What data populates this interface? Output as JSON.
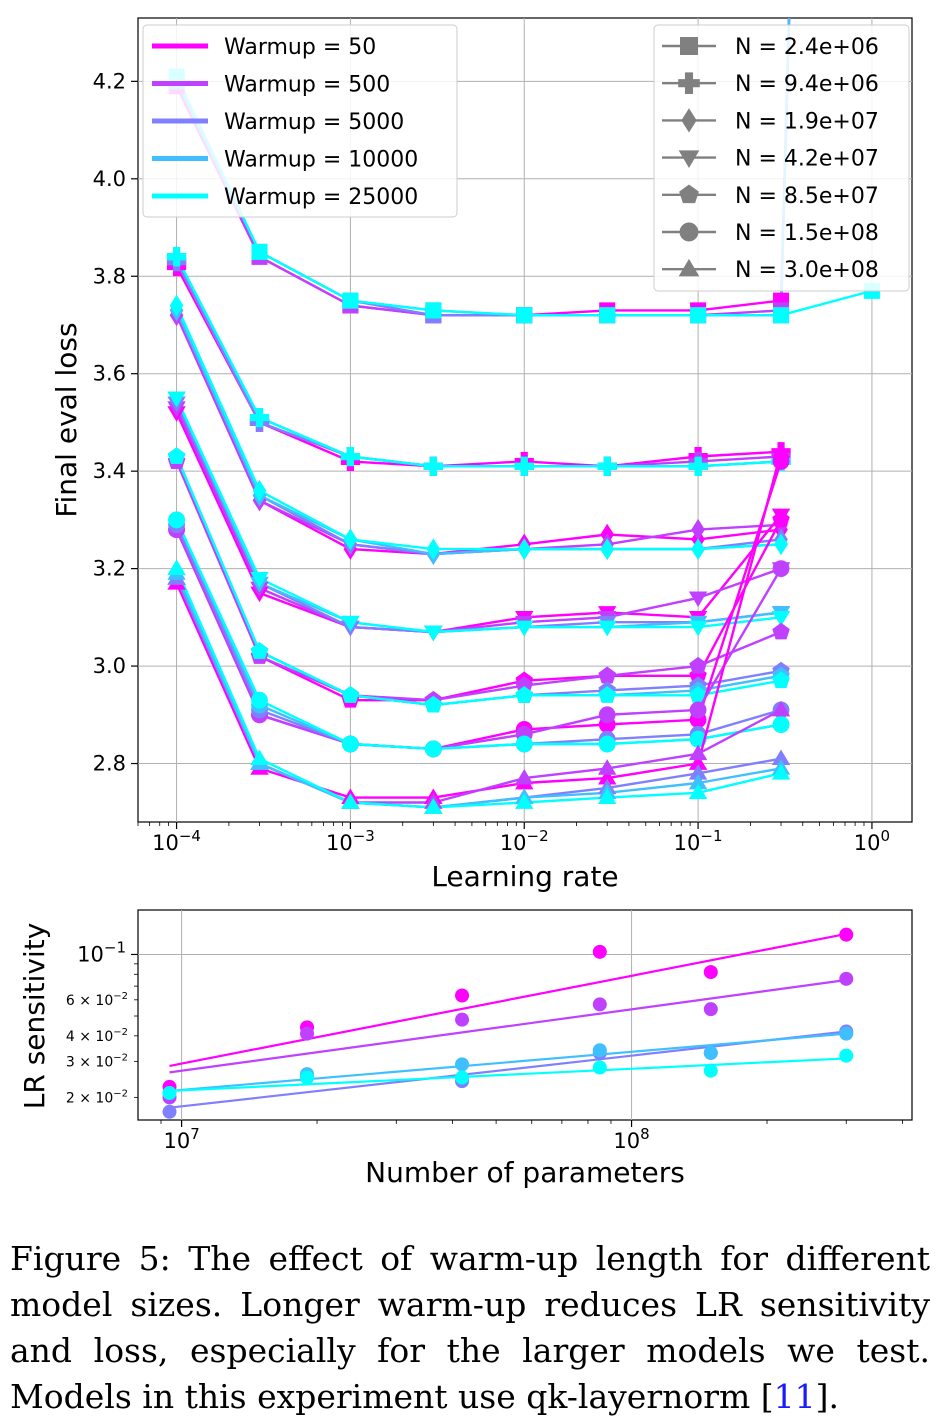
{
  "chart_data": [
    {
      "type": "line",
      "xlabel": "Learning rate",
      "ylabel": "Final eval loss",
      "xscale": "log",
      "xlim": [
        6e-05,
        1.7
      ],
      "ylim": [
        2.68,
        4.33
      ],
      "grid": true,
      "x_ticks": [
        {
          "value": 0.0001,
          "base": "10",
          "exp": "−4"
        },
        {
          "value": 0.001,
          "base": "10",
          "exp": "−3"
        },
        {
          "value": 0.01,
          "base": "10",
          "exp": "−2"
        },
        {
          "value": 0.1,
          "base": "10",
          "exp": "−1"
        },
        {
          "value": 1,
          "base": "10",
          "exp": "0"
        }
      ],
      "y_ticks": [
        {
          "value": 2.8,
          "label": "2.8"
        },
        {
          "value": 3.0,
          "label": "3.0"
        },
        {
          "value": 3.2,
          "label": "3.2"
        },
        {
          "value": 3.4,
          "label": "3.4"
        },
        {
          "value": 3.6,
          "label": "3.6"
        },
        {
          "value": 3.8,
          "label": "3.8"
        },
        {
          "value": 4.0,
          "label": "4.0"
        },
        {
          "value": 4.2,
          "label": "4.2"
        }
      ],
      "lr": [
        0.0001,
        0.0003,
        0.001,
        0.003,
        0.01,
        0.03,
        0.1,
        0.3
      ],
      "warmup_legend": {
        "placement": "top-left",
        "entries": [
          {
            "label": "Warmup = 50",
            "color": "#ff00ff"
          },
          {
            "label": "Warmup = 500",
            "color": "#bf40ff"
          },
          {
            "label": "Warmup = 5000",
            "color": "#8080ff"
          },
          {
            "label": "Warmup = 10000",
            "color": "#40bfff"
          },
          {
            "label": "Warmup = 25000",
            "color": "#00ffff"
          }
        ]
      },
      "size_legend": {
        "placement": "top-right",
        "marker_color": "#808080",
        "entries": [
          {
            "label": "N = 2.4e+06",
            "marker": "square"
          },
          {
            "label": "N = 9.4e+06",
            "marker": "plus"
          },
          {
            "label": "N = 1.9e+07",
            "marker": "diamond"
          },
          {
            "label": "N = 4.2e+07",
            "marker": "triangle-down"
          },
          {
            "label": "N = 8.5e+07",
            "marker": "pentagon"
          },
          {
            "label": "N = 1.5e+08",
            "marker": "circle"
          },
          {
            "label": "N = 3.0e+08",
            "marker": "triangle-up"
          }
        ]
      },
      "models": [
        {
          "n": "2.4e+06",
          "marker": "square",
          "series": [
            [
              4.19,
              3.84,
              3.74,
              3.72,
              3.72,
              3.73,
              3.73,
              3.75
            ],
            [
              4.2,
              3.84,
              3.74,
              3.72,
              3.72,
              3.72,
              3.72,
              3.73
            ],
            [
              4.2,
              3.85,
              3.75,
              3.72,
              3.72,
              3.72,
              3.72,
              3.72
            ],
            [
              4.2,
              3.85,
              3.75,
              3.73,
              3.72,
              3.72,
              3.72,
              3.72
            ],
            [
              4.21,
              3.85,
              3.75,
              3.73,
              3.72,
              3.72,
              3.72,
              3.72
            ]
          ],
          "extra": {
            "x": 1.0,
            "y": 3.77,
            "warmup_index": 4
          }
        },
        {
          "n": "9.4e+06",
          "marker": "plus",
          "series": [
            [
              3.82,
              3.5,
              3.42,
              3.41,
              3.42,
              3.41,
              3.43,
              3.44
            ],
            [
              3.83,
              3.5,
              3.43,
              3.41,
              3.41,
              3.41,
              3.42,
              3.43
            ],
            [
              3.83,
              3.5,
              3.43,
              3.41,
              3.41,
              3.41,
              3.41,
              3.42
            ],
            [
              3.84,
              3.51,
              3.43,
              3.41,
              3.41,
              3.41,
              3.41,
              3.42
            ],
            [
              3.84,
              3.51,
              3.43,
              3.41,
              3.41,
              3.41,
              3.41,
              3.42
            ]
          ]
        },
        {
          "n": "1.9e+07",
          "marker": "diamond",
          "series": [
            [
              3.72,
              3.34,
              3.24,
              3.23,
              3.25,
              3.27,
              3.26,
              3.28
            ],
            [
              3.72,
              3.34,
              3.25,
              3.23,
              3.24,
              3.25,
              3.28,
              3.29
            ],
            [
              3.73,
              3.35,
              3.25,
              3.23,
              3.24,
              3.24,
              3.24,
              3.26
            ],
            [
              3.73,
              3.35,
              3.26,
              3.23,
              3.24,
              3.24,
              3.24,
              3.25
            ],
            [
              3.74,
              3.36,
              3.26,
              3.24,
              3.24,
              3.24,
              3.24,
              3.25
            ]
          ]
        },
        {
          "n": "4.2e+07",
          "marker": "triangle-down",
          "series": [
            [
              3.52,
              3.15,
              3.08,
              3.07,
              3.1,
              3.11,
              3.1,
              3.31
            ],
            [
              3.53,
              3.16,
              3.08,
              3.07,
              3.09,
              3.1,
              3.14,
              3.2
            ],
            [
              3.54,
              3.17,
              3.08,
              3.07,
              3.08,
              3.09,
              3.09,
              3.11
            ],
            [
              3.55,
              3.17,
              3.09,
              3.07,
              3.08,
              3.08,
              3.09,
              3.11
            ],
            [
              3.55,
              3.18,
              3.09,
              3.07,
              3.08,
              3.08,
              3.08,
              3.1
            ]
          ]
        },
        {
          "n": "8.5e+07",
          "marker": "pentagon",
          "series": [
            [
              3.42,
              3.02,
              2.93,
              2.93,
              2.97,
              2.98,
              2.98,
              3.3
            ],
            [
              3.42,
              3.02,
              2.94,
              2.93,
              2.96,
              2.98,
              3.0,
              3.07
            ],
            [
              3.43,
              3.03,
              2.94,
              2.92,
              2.94,
              2.95,
              2.96,
              2.99
            ],
            [
              3.43,
              3.03,
              2.94,
              2.92,
              2.94,
              2.94,
              2.95,
              2.98
            ],
            [
              3.43,
              3.03,
              2.94,
              2.92,
              2.94,
              2.94,
              2.94,
              2.97
            ]
          ]
        },
        {
          "n": "1.5e+08",
          "marker": "circle",
          "series": [
            [
              3.28,
              2.9,
              2.84,
              2.83,
              2.87,
              2.88,
              2.89,
              3.42
            ],
            [
              3.28,
              2.9,
              2.84,
              2.83,
              2.86,
              2.9,
              2.91,
              3.2
            ],
            [
              3.29,
              2.91,
              2.84,
              2.83,
              2.84,
              2.85,
              2.86,
              2.91
            ],
            [
              3.3,
              2.92,
              2.84,
              2.83,
              2.84,
              2.84,
              2.85,
              2.88
            ],
            [
              3.3,
              2.93,
              2.84,
              2.83,
              2.84,
              2.84,
              2.85,
              2.88
            ]
          ]
        },
        {
          "n": "3.0e+08",
          "marker": "triangle-up",
          "series": [
            [
              3.17,
              2.79,
              2.73,
              2.73,
              2.76,
              2.77,
              2.8,
              3.44
            ],
            [
              3.18,
              2.8,
              2.72,
              2.72,
              2.77,
              2.79,
              2.82,
              2.91
            ],
            [
              3.18,
              2.8,
              2.72,
              2.71,
              2.73,
              2.75,
              2.78,
              2.81
            ],
            [
              3.19,
              2.8,
              2.72,
              2.71,
              2.73,
              2.74,
              2.76,
              2.79
            ],
            [
              3.2,
              2.81,
              2.72,
              2.71,
              2.72,
              2.73,
              2.74,
              2.78
            ]
          ]
        }
      ]
    },
    {
      "type": "scatter",
      "xlabel": "Number of parameters",
      "ylabel": "LR sensitivity",
      "xscale": "log",
      "yscale": "log",
      "xlim": [
        8000000,
        420000000
      ],
      "ylim": [
        0.0155,
        0.165
      ],
      "grid": true,
      "x_ticks": [
        {
          "value": 10000000,
          "base": "10",
          "exp": "7"
        },
        {
          "value": 100000000,
          "base": "10",
          "exp": "8"
        }
      ],
      "y_ticks": [
        {
          "value": 0.1,
          "base": "10",
          "exp": "−1",
          "size": "major"
        },
        {
          "value": 0.06,
          "mant": "6 × 10",
          "exp": "−2",
          "size": "minor"
        },
        {
          "value": 0.04,
          "mant": "4 × 10",
          "exp": "−2",
          "size": "minor"
        },
        {
          "value": 0.03,
          "mant": "3 × 10",
          "exp": "−2",
          "size": "minor"
        },
        {
          "value": 0.02,
          "mant": "2 × 10",
          "exp": "−2",
          "size": "minor"
        }
      ],
      "x": [
        9400000,
        19000000,
        42000000,
        85000000,
        150000000,
        300000000
      ],
      "series": [
        {
          "name": "Warmup = 50",
          "color": "#ff00ff",
          "values": [
            0.0225,
            0.044,
            0.063,
            0.103,
            0.082,
            0.125
          ],
          "fit": [
            0.0285,
            0.126
          ]
        },
        {
          "name": "Warmup = 500",
          "color": "#bf40ff",
          "values": [
            0.02,
            0.041,
            0.048,
            0.057,
            0.054,
            0.076
          ],
          "fit": [
            0.0265,
            0.075
          ]
        },
        {
          "name": "Warmup = 5000",
          "color": "#8080ff",
          "values": [
            0.017,
            0.025,
            0.024,
            0.033,
            0.033,
            0.042
          ],
          "fit": [
            0.0178,
            0.042
          ]
        },
        {
          "name": "Warmup = 10000",
          "color": "#40bfff",
          "values": [
            0.021,
            0.026,
            0.029,
            0.034,
            0.033,
            0.041
          ],
          "fit": [
            0.0215,
            0.041
          ]
        },
        {
          "name": "Warmup = 25000",
          "color": "#00ffff",
          "values": [
            0.021,
            0.025,
            0.025,
            0.028,
            0.027,
            0.032
          ],
          "fit": [
            0.0215,
            0.031
          ]
        }
      ]
    }
  ],
  "caption": {
    "text_before": "Figure 5: The effect of warm-up length for different model sizes. Longer warm-up reduces LR sensitivity and loss, especially for the larger models we test. Models in this experiment use qk-layernorm [",
    "citation": "11",
    "text_after": "]."
  }
}
